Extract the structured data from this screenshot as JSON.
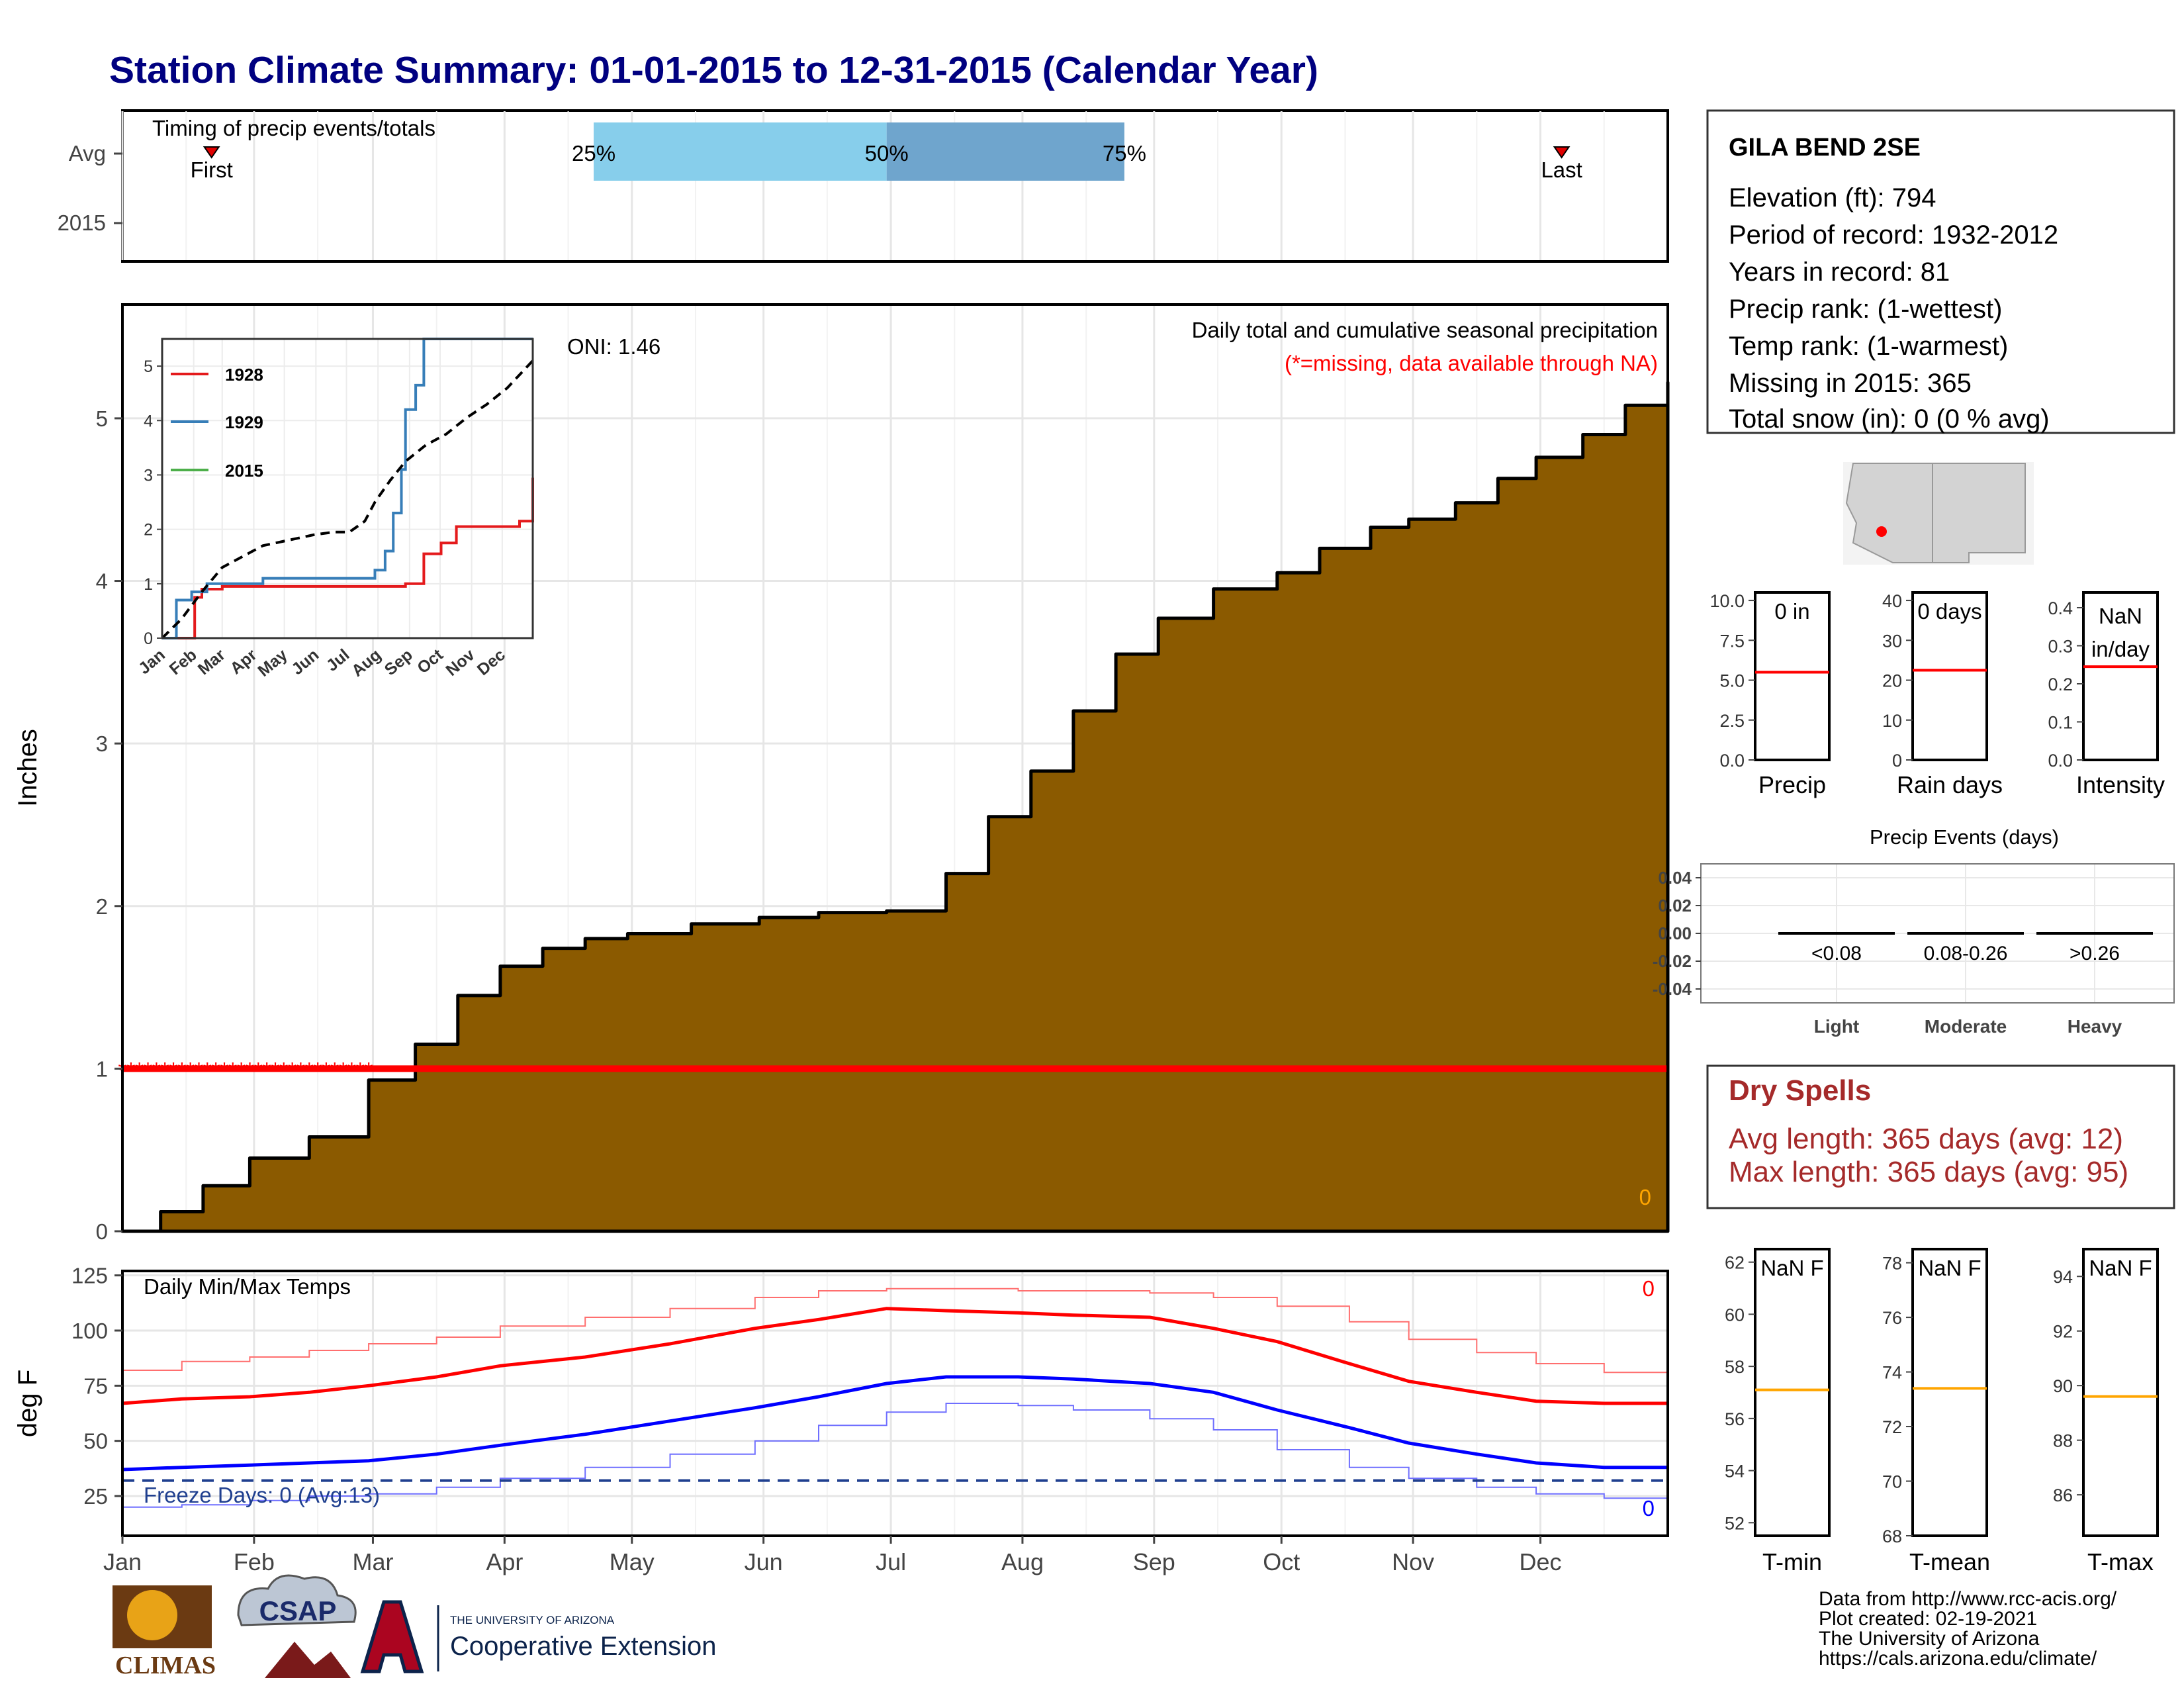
{
  "header": {
    "title": "Station Climate Summary: 01-01-2015 to 12-31-2015 (Calendar Year)"
  },
  "colors": {
    "title": "#000080",
    "precip_fill": "#8B5A00",
    "missing": "#ff0000",
    "tmax_avg": "#ff0000",
    "tmin_avg": "#0000ff",
    "freeze_line": "#1f3f8f",
    "rank_line": "#ffa500",
    "dry": "#a52a2a",
    "q1": "#87ceeb",
    "q2": "#6fa5cd"
  },
  "months": [
    "Jan",
    "Feb",
    "Mar",
    "Apr",
    "May",
    "Jun",
    "Jul",
    "Aug",
    "Sep",
    "Oct",
    "Nov",
    "Dec"
  ],
  "months_short": [
    "Jan",
    "Feb",
    "Mar",
    "Apr",
    "May",
    "Jun",
    "Jul",
    "Aug",
    "Sep",
    "Oct",
    "Nov",
    "Dec"
  ],
  "timing": {
    "title": "Timing of precip events/totals",
    "rows": [
      "Avg",
      "2015"
    ],
    "first_label": "First",
    "first_day": 22,
    "last_label": "Last",
    "last_day": 340,
    "q25_label": "25%",
    "q25_day": 112,
    "q50_label": "50%",
    "q50_day": 181,
    "q75_label": "75%",
    "q75_day": 237
  },
  "station": {
    "name": "GILA BEND 2SE",
    "lines": [
      "Elevation (ft): 794",
      "Period of record: 1932-2012",
      "Years in record: 81",
      "Precip rank:  (1-wettest)",
      "Temp rank:  (1-warmest)",
      "Missing in 2015: 365",
      "Total snow (in): 0 (0 % avg)"
    ]
  },
  "precip_panel": {
    "ylabel": "Inches",
    "title": "Daily total and cumulative seasonal precipitation",
    "missing_note": "(*=missing, data available through NA)",
    "oni": "ONI: 1.46",
    "corner_value": "0",
    "missing_marker_value": 1.0
  },
  "inset": {
    "series_names": [
      "1928",
      "1929",
      "2015"
    ],
    "series_colors": [
      "#e41a1c",
      "#377eb8",
      "#4daf4a"
    ]
  },
  "temp_panel": {
    "ylabel": "deg F",
    "title": "Daily Min/Max Temps",
    "top_right": "0",
    "bottom_right": "0",
    "freeze_text": "Freeze Days: 0 (Avg:13)",
    "freeze_line": 32
  },
  "ranks": [
    {
      "label": "Precip",
      "value_text": "0 in",
      "ticks": [
        "0.0",
        "2.5",
        "5.0",
        "7.5",
        "10.0"
      ],
      "ymin": 0,
      "ymax": 10.5,
      "line": 5.5
    },
    {
      "label": "Rain days",
      "value_text": "0 days",
      "ticks": [
        "0",
        "10",
        "20",
        "30",
        "40"
      ],
      "ymin": 0,
      "ymax": 42,
      "line": 22.5
    },
    {
      "label": "Intensity",
      "value_text": "NaN in/day",
      "ticks": [
        "0.0",
        "0.1",
        "0.2",
        "0.3",
        "0.4"
      ],
      "ymin": 0,
      "ymax": 0.44,
      "line": 0.245
    }
  ],
  "events": {
    "title": "Precip Events (days)",
    "yticks": [
      "0.04",
      "0.02",
      "0.00",
      "-0.02",
      "-0.04"
    ],
    "categories": [
      "Light",
      "Moderate",
      "Heavy"
    ],
    "ranges": [
      "<0.08",
      "0.08-0.26",
      ">0.26"
    ]
  },
  "dry_spells": {
    "title": "Dry Spells",
    "avg": "Avg length: 365 days (avg: 12)",
    "max": "Max length: 365 days (avg: 95)"
  },
  "temp_ranks": [
    {
      "label": "T-min",
      "value_text": "NaN F",
      "ticks": [
        "52",
        "54",
        "56",
        "58",
        "60",
        "62"
      ],
      "ymin": 51.5,
      "ymax": 62.5,
      "line": 57.1
    },
    {
      "label": "T-mean",
      "value_text": "NaN F",
      "ticks": [
        "68",
        "70",
        "72",
        "74",
        "76",
        "78"
      ],
      "ymin": 68,
      "ymax": 78.5,
      "line": 73.4
    },
    {
      "label": "T-max",
      "value_text": "NaN F",
      "ticks": [
        "86",
        "88",
        "90",
        "92",
        "94"
      ],
      "ymin": 84.5,
      "ymax": 95,
      "line": 89.6
    }
  ],
  "footer": {
    "lines": [
      "Data from http://www.rcc-acis.org/",
      "Plot created: 02-19-2021",
      "The University of Arizona",
      "https://cals.arizona.edu/climate/"
    ],
    "logo_climas": "CLIMAS",
    "logo_csap": "CSAP",
    "ua_small": "THE UNIVERSITY OF ARIZONA",
    "ua_big": "Cooperative Extension"
  },
  "chart_data": [
    {
      "type": "area",
      "title": "Daily total and cumulative seasonal precipitation",
      "xlabel": "",
      "ylabel": "Inches",
      "ylim": [
        0,
        5.7
      ],
      "x_days": [
        1,
        10,
        20,
        31,
        45,
        59,
        70,
        80,
        90,
        100,
        110,
        120,
        135,
        151,
        165,
        181,
        195,
        205,
        215,
        225,
        235,
        245,
        258,
        273,
        283,
        295,
        304,
        315,
        325,
        334,
        345,
        355,
        365
      ],
      "y": [
        0.0,
        0.12,
        0.28,
        0.45,
        0.58,
        0.93,
        1.15,
        1.45,
        1.63,
        1.74,
        1.8,
        1.83,
        1.89,
        1.93,
        1.96,
        1.97,
        2.2,
        2.55,
        2.83,
        3.2,
        3.55,
        3.77,
        3.95,
        4.05,
        4.2,
        4.33,
        4.38,
        4.48,
        4.63,
        4.76,
        4.9,
        5.08,
        5.22
      ]
    },
    {
      "type": "line",
      "title": "",
      "xlabel": "",
      "ylabel": "",
      "ylim": [
        0,
        5.5
      ],
      "series": [
        {
          "name": "1928",
          "x_days": [
            1,
            15,
            33,
            40,
            60,
            75,
            240,
            255,
            258,
            275,
            290,
            352,
            365
          ],
          "y": [
            0,
            0,
            0.75,
            0.9,
            0.95,
            0.95,
            1.0,
            1.0,
            1.55,
            1.75,
            2.05,
            2.15,
            2.95
          ]
        },
        {
          "name": "1929",
          "x_days": [
            1,
            15,
            30,
            45,
            60,
            100,
            210,
            220,
            228,
            236,
            240,
            250,
            258,
            365
          ],
          "y": [
            0,
            0.7,
            0.85,
            1.0,
            1.0,
            1.1,
            1.25,
            1.6,
            2.3,
            3.1,
            4.2,
            4.65,
            5.5,
            5.5
          ]
        },
        {
          "name": "2015",
          "x_days": [],
          "y": []
        },
        {
          "name": "",
          "x_days": [
            1,
            20,
            40,
            60,
            80,
            100,
            125,
            150,
            170,
            185,
            200,
            210,
            225,
            240,
            260,
            280,
            300,
            320,
            340,
            365
          ],
          "y": [
            0,
            0.35,
            0.85,
            1.3,
            1.5,
            1.7,
            1.8,
            1.9,
            1.95,
            1.95,
            2.15,
            2.5,
            2.9,
            3.25,
            3.55,
            3.75,
            4.05,
            4.3,
            4.6,
            5.1
          ]
        }
      ]
    },
    {
      "type": "line",
      "title": "Daily Min/Max Temps",
      "xlabel": "",
      "ylabel": "deg F",
      "ylim": [
        7,
        127
      ],
      "series": [
        {
          "name": "",
          "x_days": [
            1,
            15,
            31,
            45,
            59,
            75,
            90,
            110,
            130,
            150,
            165,
            181,
            195,
            212,
            225,
            243,
            258,
            273,
            290,
            304,
            320,
            334,
            350,
            365
          ],
          "y": [
            67,
            69,
            70,
            72,
            75,
            79,
            84,
            88,
            94,
            101,
            105,
            110,
            109,
            108,
            107,
            106,
            101,
            95,
            85,
            77,
            72,
            68,
            67,
            67
          ]
        },
        {
          "name": "",
          "x_days": [
            1,
            15,
            31,
            45,
            59,
            75,
            90,
            110,
            130,
            150,
            165,
            181,
            195,
            212,
            225,
            243,
            258,
            273,
            290,
            304,
            320,
            334,
            350,
            365
          ],
          "y": [
            37,
            38,
            39,
            40,
            41,
            44,
            48,
            53,
            59,
            65,
            70,
            76,
            79,
            79,
            78,
            76,
            72,
            64,
            56,
            49,
            44,
            40,
            38,
            38
          ]
        },
        {
          "name": "",
          "x_days": [
            1,
            15,
            31,
            45,
            59,
            75,
            90,
            110,
            130,
            150,
            165,
            181,
            195,
            212,
            225,
            243,
            258,
            273,
            290,
            304,
            320,
            334,
            350,
            365
          ],
          "y": [
            82,
            86,
            88,
            91,
            94,
            97,
            102,
            106,
            110,
            115,
            118,
            119,
            119,
            118,
            118,
            117,
            115,
            111,
            104,
            96,
            90,
            85,
            81,
            81
          ]
        },
        {
          "name": "",
          "x_days": [
            1,
            15,
            31,
            45,
            59,
            75,
            90,
            110,
            130,
            150,
            165,
            181,
            195,
            212,
            225,
            243,
            258,
            273,
            290,
            304,
            320,
            334,
            350,
            365
          ],
          "y": [
            20,
            21,
            23,
            25,
            26,
            29,
            33,
            38,
            44,
            50,
            57,
            63,
            67,
            66,
            64,
            60,
            55,
            46,
            38,
            33,
            29,
            26,
            24,
            22
          ]
        }
      ]
    }
  ]
}
